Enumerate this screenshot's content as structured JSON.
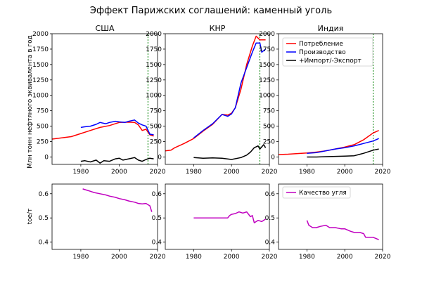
{
  "figure": {
    "title": "Эффект Парижских соглашений: каменный уголь",
    "ylabel_top": "Млн тонн нефтяного эквивалента в год",
    "ylabel_bottom": "toe/т"
  },
  "colors": {
    "consumption": "#ff0000",
    "production": "#0000ff",
    "net_import": "#000000",
    "quality": "#c000c0",
    "paris_line": "#008000"
  },
  "chart_data": [
    {
      "type": "line",
      "title": "США",
      "xlim": [
        1965,
        2020
      ],
      "ylim": [
        -120,
        2000
      ],
      "xticks": [
        1980,
        2000,
        2020
      ],
      "yticks": [
        0,
        250,
        500,
        750,
        1000,
        1250,
        1500,
        1750,
        2000
      ],
      "vline_x": 2015,
      "series": [
        {
          "key": "consumption",
          "x": [
            1965,
            1970,
            1975,
            1980,
            1985,
            1990,
            1995,
            2000,
            2005,
            2008,
            2010,
            2012,
            2014,
            2016,
            2018
          ],
          "y": [
            290,
            310,
            330,
            380,
            430,
            480,
            510,
            560,
            565,
            560,
            520,
            430,
            450,
            360,
            340
          ]
        },
        {
          "key": "production",
          "x": [
            1980,
            1982,
            1985,
            1988,
            1990,
            1993,
            1995,
            1998,
            2000,
            2003,
            2005,
            2008,
            2010,
            2012,
            2014,
            2016,
            2018
          ],
          "y": [
            480,
            490,
            500,
            530,
            560,
            540,
            560,
            580,
            570,
            560,
            580,
            600,
            550,
            520,
            500,
            370,
            360
          ]
        },
        {
          "key": "net_import",
          "x": [
            1980,
            1982,
            1985,
            1988,
            1990,
            1992,
            1995,
            1998,
            2000,
            2002,
            2005,
            2008,
            2010,
            2012,
            2014,
            2016,
            2018
          ],
          "y": [
            -70,
            -60,
            -80,
            -50,
            -100,
            -60,
            -70,
            -30,
            -20,
            -50,
            -30,
            -10,
            -50,
            -70,
            -40,
            -20,
            -30
          ]
        }
      ]
    },
    {
      "type": "line",
      "title": "КНР",
      "xlim": [
        1965,
        2020
      ],
      "ylim": [
        -120,
        2000
      ],
      "xticks": [
        1980,
        2000,
        2020
      ],
      "yticks": [
        0,
        250,
        500,
        750,
        1000,
        1250,
        1500,
        1750,
        2000
      ],
      "vline_x": 2015,
      "series": [
        {
          "key": "consumption",
          "x": [
            1965,
            1968,
            1970,
            1975,
            1980,
            1985,
            1990,
            1995,
            1998,
            2000,
            2002,
            2005,
            2008,
            2011,
            2013,
            2015,
            2018
          ],
          "y": [
            100,
            110,
            150,
            220,
            300,
            420,
            530,
            690,
            680,
            710,
            800,
            1100,
            1500,
            1800,
            1960,
            1900,
            1900
          ]
        },
        {
          "key": "production",
          "x": [
            1980,
            1985,
            1990,
            1995,
            1998,
            2000,
            2002,
            2005,
            2008,
            2011,
            2013,
            2015,
            2016,
            2018
          ],
          "y": [
            310,
            430,
            540,
            690,
            660,
            700,
            800,
            1200,
            1450,
            1700,
            1850,
            1850,
            1700,
            1750
          ]
        },
        {
          "key": "net_import",
          "x": [
            1980,
            1985,
            1990,
            1995,
            2000,
            2005,
            2008,
            2010,
            2012,
            2014,
            2015,
            2017,
            2018
          ],
          "y": [
            -10,
            -20,
            -15,
            -20,
            -40,
            -10,
            30,
            80,
            150,
            180,
            130,
            200,
            150
          ]
        }
      ]
    },
    {
      "type": "line",
      "title": "Индия",
      "xlim": [
        1965,
        2020
      ],
      "ylim": [
        -120,
        2000
      ],
      "xticks": [
        1980,
        2000,
        2020
      ],
      "yticks": [
        0,
        250,
        500,
        750,
        1000,
        1250,
        1500,
        1750,
        2000
      ],
      "vline_x": 2015,
      "legend": [
        {
          "key": "consumption",
          "label": "Потребление"
        },
        {
          "key": "production",
          "label": "Производство"
        },
        {
          "key": "net_import",
          "label": "+Импорт/-Экспорт"
        }
      ],
      "series": [
        {
          "key": "consumption",
          "x": [
            1965,
            1970,
            1975,
            1980,
            1985,
            1990,
            1995,
            2000,
            2005,
            2010,
            2015,
            2018
          ],
          "y": [
            40,
            45,
            55,
            65,
            80,
            100,
            130,
            160,
            200,
            280,
            390,
            430
          ]
        },
        {
          "key": "production",
          "x": [
            1980,
            1985,
            1990,
            1995,
            2000,
            2005,
            2010,
            2015,
            2018
          ],
          "y": [
            60,
            70,
            100,
            130,
            150,
            180,
            220,
            260,
            300
          ]
        },
        {
          "key": "net_import",
          "x": [
            1980,
            1985,
            1990,
            1995,
            2000,
            2005,
            2010,
            2015,
            2018
          ],
          "y": [
            0,
            0,
            5,
            10,
            15,
            20,
            60,
            110,
            130
          ]
        }
      ]
    },
    {
      "type": "line",
      "title": "",
      "xlim": [
        1965,
        2020
      ],
      "ylim": [
        0.37,
        0.64
      ],
      "xticks": [
        1980,
        2000,
        2020
      ],
      "yticks": [
        0.4,
        0.5,
        0.6
      ],
      "series": [
        {
          "key": "quality",
          "x": [
            1981,
            1983,
            1985,
            1987,
            1990,
            1993,
            1995,
            1998,
            2000,
            2003,
            2005,
            2008,
            2010,
            2012,
            2014,
            2016,
            2017
          ],
          "y": [
            0.62,
            0.615,
            0.61,
            0.605,
            0.6,
            0.595,
            0.59,
            0.585,
            0.58,
            0.575,
            0.57,
            0.565,
            0.56,
            0.558,
            0.56,
            0.55,
            0.525
          ]
        }
      ]
    },
    {
      "type": "line",
      "title": "",
      "xlim": [
        1965,
        2020
      ],
      "ylim": [
        0.37,
        0.64
      ],
      "xticks": [
        1980,
        2000,
        2020
      ],
      "yticks": [
        0.4,
        0.5,
        0.6
      ],
      "series": [
        {
          "key": "quality",
          "x": [
            1980,
            1990,
            1998,
            1999,
            2000,
            2002,
            2004,
            2006,
            2008,
            2010,
            2011,
            2012,
            2014,
            2016,
            2018
          ],
          "y": [
            0.5,
            0.5,
            0.5,
            0.51,
            0.515,
            0.518,
            0.525,
            0.52,
            0.525,
            0.505,
            0.51,
            0.48,
            0.49,
            0.485,
            0.495
          ]
        }
      ]
    },
    {
      "type": "line",
      "title": "",
      "xlim": [
        1965,
        2020
      ],
      "ylim": [
        0.37,
        0.64
      ],
      "xticks": [
        1980,
        2000,
        2020
      ],
      "yticks": [
        0.4,
        0.5,
        0.6
      ],
      "legend": [
        {
          "key": "quality",
          "label": "Качество угля"
        }
      ],
      "series": [
        {
          "key": "quality",
          "x": [
            1980,
            1981,
            1983,
            1985,
            1987,
            1990,
            1992,
            1995,
            1998,
            2000,
            2003,
            2005,
            2008,
            2010,
            2011,
            2013,
            2015,
            2018
          ],
          "y": [
            0.49,
            0.47,
            0.46,
            0.46,
            0.465,
            0.47,
            0.46,
            0.46,
            0.455,
            0.455,
            0.445,
            0.44,
            0.44,
            0.435,
            0.42,
            0.42,
            0.42,
            0.41
          ]
        }
      ]
    }
  ]
}
